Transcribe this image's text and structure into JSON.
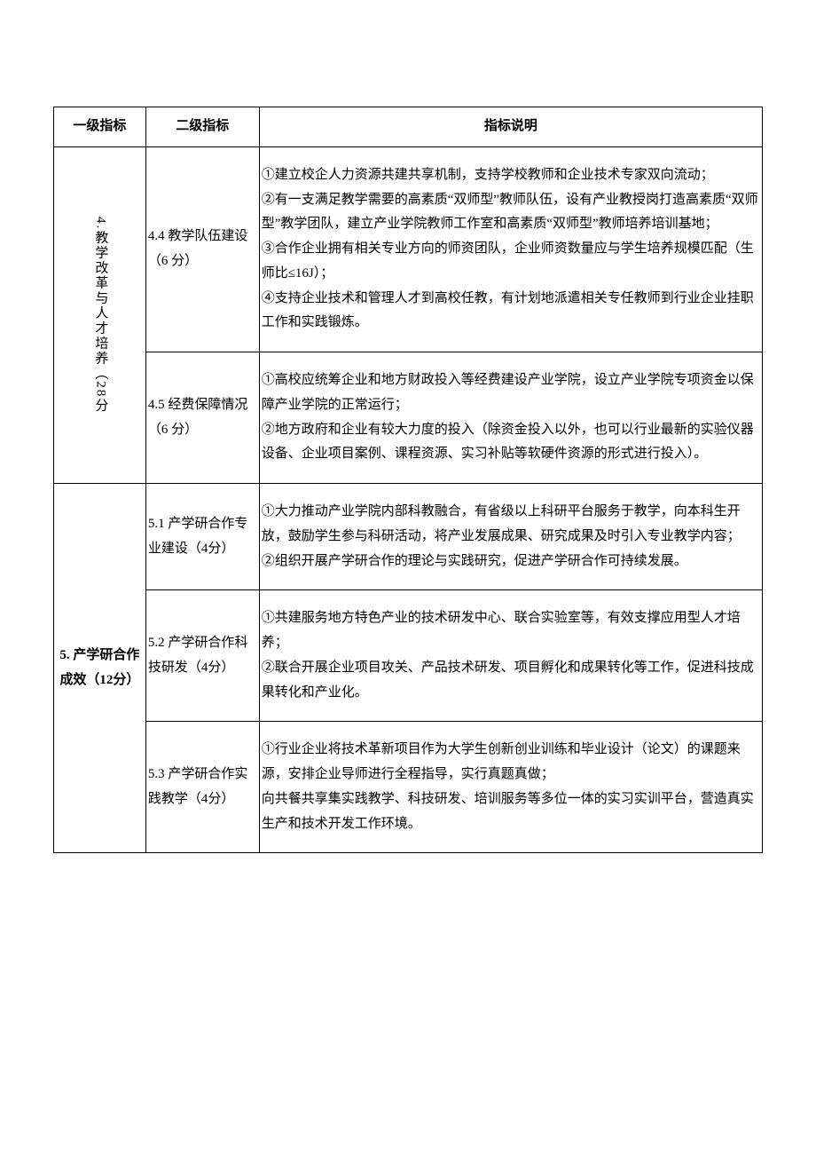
{
  "headers": {
    "col1": "一级指标",
    "col2": "二级指标",
    "col3": "指标说明"
  },
  "section4": {
    "title": "4.教学改革与人才培养（28分",
    "row44": {
      "label": "4.4 教学队伍建设（6 分）",
      "desc": "①建立校企人力资源共建共享机制，支持学校教师和企业技术专家双向流动；\n②有一支满足教学需要的高素质“双师型”教师队伍，设有产业教授岗打造高素质“双师型”教学团队，建立产业学院教师工作室和高素质“双师型”教师培养培训基地；\n③合作企业拥有相关专业方向的师资团队，企业师资数量应与学生培养规模匹配（生师比≤16J）；\n④支持企业技术和管理人才到高校任教，有计划地派遣相关专任教师到行业企业挂职工作和实践锻炼。"
    },
    "row45": {
      "label": "4.5 经费保障情况（6 分）",
      "desc": "①高校应统筹企业和地方财政投入等经费建设产业学院，设立产业学院专项资金以保障产业学院的正常运行；\n②地方政府和企业有较大力度的投入（除资金投入以外，也可以行业最新的实验仪器设备、企业项目案例、课程资源、实习补贴等软硬件资源的形式进行投入）。"
    }
  },
  "section5": {
    "title": "5. 产学研合作成效（12分）",
    "row51": {
      "label": "5.1 产学研合作专业建设（4分）",
      "desc": "①大力推动产业学院内部科教融合，有省级以上科研平台服务于教学，向本科生开放，鼓励学生参与科研活动，将产业发展成果、研究成果及时引入专业教学内容；\n②组织开展产学研合作的理论与实践研究，促进产学研合作可持续发展。"
    },
    "row52": {
      "label": "5.2 产学研合作科技研发（4分）",
      "desc": "①共建服务地方特色产业的技术研发中心、联合实验室等，有效支撑应用型人才培养；\n②联合开展企业项目攻关、产品技术研发、项目孵化和成果转化等工作，促进科技成果转化和产业化。"
    },
    "row53": {
      "label": "5.3 产学研合作实践教学（4分）",
      "desc": "①行业企业将技术革新项目作为大学生创新创业训练和毕业设计（论文）的课题来源，安排企业导师进行全程指导，实行真题真做；\n向共餐共享集实践教学、科技研发、培训服务等多位一体的实习实训平台，营造真实生产和技术开发工作环境。"
    }
  }
}
